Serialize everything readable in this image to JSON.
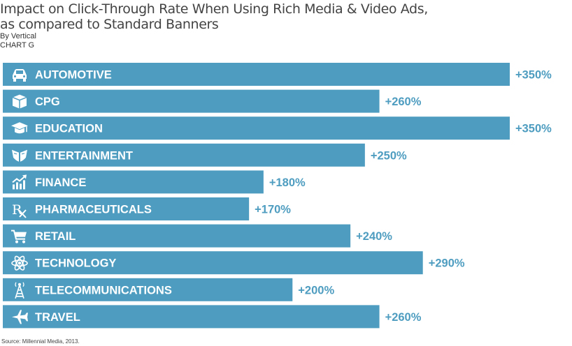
{
  "header": {
    "title_line1": "Impact on Click-Through Rate When Using Rich Media & Video Ads,",
    "title_line2": "as compared to Standard Banners",
    "subtitle": "By Vertical",
    "chart_label": "CHART G"
  },
  "source": "Source: Millennial Media, 2013.",
  "colors": {
    "bar": "#4e9dc0",
    "value_label": "#4e9dc0",
    "category_label": "#ffffff",
    "icon": "#ffffff"
  },
  "chart_data": {
    "type": "bar",
    "orientation": "horizontal",
    "title": "Impact on Click-Through Rate When Using Rich Media & Video Ads, as compared to Standard Banners",
    "subtitle": "By Vertical",
    "value_format": "+{v}%",
    "xlim": [
      0,
      350
    ],
    "grid": false,
    "legend": "none",
    "categories": [
      "AUTOMOTIVE",
      "CPG",
      "EDUCATION",
      "ENTERTAINMENT",
      "FINANCE",
      "PHARMACEUTICALS",
      "RETAIL",
      "TECHNOLOGY",
      "TELECOMMUNICATIONS",
      "TRAVEL"
    ],
    "values": [
      350,
      260,
      350,
      250,
      180,
      170,
      240,
      290,
      200,
      260
    ],
    "value_labels": [
      "+350%",
      "+260%",
      "+350%",
      "+250%",
      "+180%",
      "+170%",
      "+240%",
      "+290%",
      "+200%",
      "+260%"
    ],
    "icons": [
      "car-icon",
      "box-icon",
      "graduation-cap-icon",
      "film-icon",
      "growth-chart-icon",
      "prescription-icon",
      "shopping-cart-icon",
      "atom-icon",
      "antenna-tower-icon",
      "airplane-icon"
    ]
  }
}
